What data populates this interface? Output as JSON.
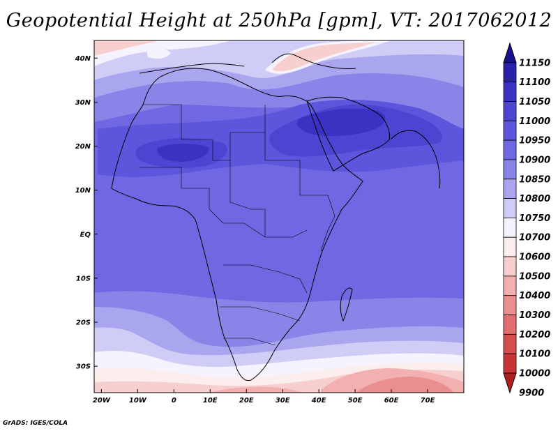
{
  "title": "Geopotential Height at 250hPa [gpm], VT: 2017062012",
  "credit": "GrADS: IGES/COLA",
  "map": {
    "lat_ticks": [
      "40N",
      "30N",
      "20N",
      "10N",
      "EQ",
      "10S",
      "20S",
      "30S"
    ],
    "lon_ticks": [
      "20W",
      "10W",
      "0",
      "10E",
      "20E",
      "30E",
      "40E",
      "50E",
      "60E",
      "70E"
    ],
    "lat_range": [
      -36,
      44
    ],
    "lon_range": [
      -22,
      80
    ]
  },
  "colorbar": {
    "levels": [
      "11150",
      "11100",
      "11050",
      "11000",
      "10950",
      "10900",
      "10850",
      "10800",
      "10750",
      "10700",
      "10600",
      "10500",
      "10400",
      "10300",
      "10200",
      "10100",
      "10000",
      "9900"
    ],
    "colors": [
      "#17108f",
      "#2a1fab",
      "#3b32c4",
      "#4d45d2",
      "#5d55dc",
      "#6f68e2",
      "#8a84e8",
      "#aaa5ef",
      "#cfcdf6",
      "#f5f3ff",
      "#fdeeee",
      "#f8cfcf",
      "#f2b0b0",
      "#e98f8f",
      "#e06f6f",
      "#d54e4e",
      "#c63434",
      "#b01f1f"
    ]
  }
}
